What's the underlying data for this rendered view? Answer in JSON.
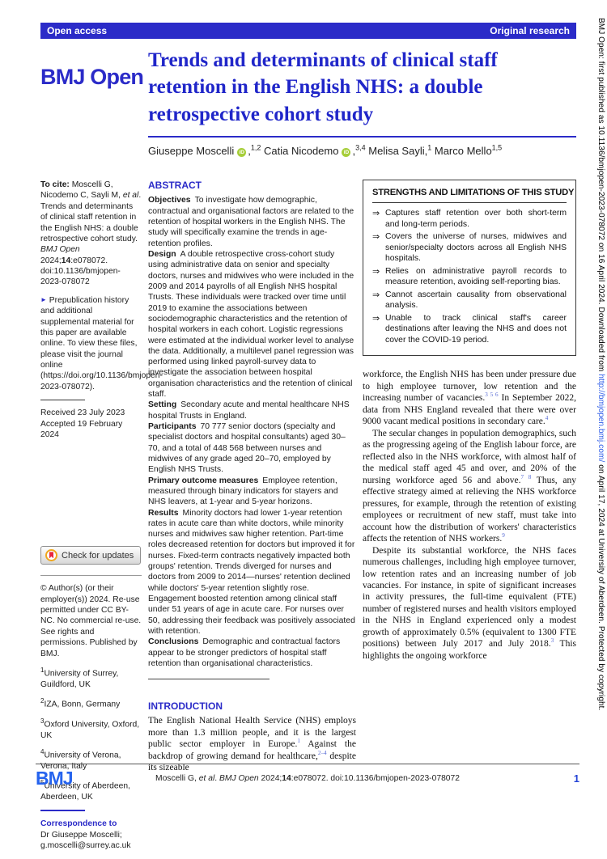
{
  "topbar": {
    "left": "Open access",
    "right": "Original research"
  },
  "masthead": {
    "logo": "BMJ Open",
    "title": "Trends and determinants of clinical staff retention in the English NHS: a double retrospective cohort study"
  },
  "authors": [
    {
      "name": "Giuseppe Moscelli",
      "orcid": true,
      "orcid_glyph": "iD",
      "comma": ",",
      "sup": "1,2",
      "sep": "  "
    },
    {
      "name": "Catia Nicodemo",
      "orcid": true,
      "orcid_glyph": "iD",
      "comma": ",",
      "sup": "3,4",
      "sep": "  "
    },
    {
      "name": "Melisa Sayli",
      "orcid": false,
      "orcid_glyph": "iD",
      "comma": ",",
      "sup": "1",
      "sep": "  "
    },
    {
      "name": "Marco Mello",
      "orcid": false,
      "orcid_glyph": "iD",
      "comma": "",
      "sup": "1,5",
      "sep": ""
    }
  ],
  "left_col": {
    "to_cite_segments": [
      {
        "t": "To cite: ",
        "b": true
      },
      {
        "t": "Moscelli G, Nicodemo C, Sayli M, "
      },
      {
        "t": "et al",
        "i": true
      },
      {
        "t": ". Trends and determinants of clinical staff retention in the English NHS: a double retrospective cohort study. "
      },
      {
        "t": "BMJ Open",
        "i": true
      },
      {
        "t": " 2024;"
      },
      {
        "t": "14",
        "b": true
      },
      {
        "t": ":e078072. doi:10.1136/bmjopen-2023-078072"
      }
    ],
    "prepub_marker": "►",
    "prepub_text": "Prepublication history and additional supplemental material for this paper are available online. To view these files, please visit the journal online (https://doi.org/10.1136/bmjopen-2023-078072).",
    "received": "Received 23 July 2023",
    "accepted": "Accepted 19 February 2024",
    "check_updates_label": "Check for updates",
    "copyright": "© Author(s) (or their employer(s)) 2024. Re-use permitted under CC BY-NC. No commercial re-use. See rights and permissions. Published by BMJ.",
    "affiliations": [
      {
        "sup": "1",
        "text": "University of Surrey, Guildford, UK"
      },
      {
        "sup": "2",
        "text": "IZA, Bonn, Germany"
      },
      {
        "sup": "3",
        "text": "Oxford University, Oxford, UK"
      },
      {
        "sup": "4",
        "text": "University of Verona, Verona, Italy"
      },
      {
        "sup": "5",
        "text": "University of Aberdeen, Aberdeen, UK"
      }
    ],
    "correspondence_label": "Correspondence to",
    "correspondence_name": "Dr Giuseppe Moscelli;",
    "correspondence_email": "g.moscelli@surrey.ac.uk"
  },
  "abstract": {
    "heading": "ABSTRACT",
    "sections": [
      {
        "label": "Objectives",
        "text": "To investigate how demographic, contractual and organisational factors are related to the retention of hospital workers in the English NHS. The study will specifically examine the trends in age-retention profiles."
      },
      {
        "label": "Design",
        "text": "A double retrospective cross-cohort study using administrative data on senior and specialty doctors, nurses and midwives who were included in the 2009 and 2014 payrolls of all English NHS hospital Trusts. These individuals were tracked over time until 2019 to examine the associations between sociodemographic characteristics and the retention of hospital workers in each cohort. Logistic regressions were estimated at the individual worker level to analyse the data. Additionally, a multilevel panel regression was performed using linked payroll-survey data to investigate the association between hospital organisation characteristics and the retention of clinical staff."
      },
      {
        "label": "Setting",
        "text": "Secondary acute and mental healthcare NHS hospital Trusts in England."
      },
      {
        "label": "Participants",
        "text": "70 777 senior doctors (specialty and specialist doctors and hospital consultants) aged 30–70, and a total of 448 568 between nurses and midwives of any grade aged 20–70, employed by English NHS Trusts."
      },
      {
        "label": "Primary outcome measures",
        "text": "Employee retention, measured through binary indicators for stayers and NHS leavers, at 1-year and 5-year horizons."
      },
      {
        "label": "Results",
        "text": "Minority doctors had lower 1-year retention rates in acute care than white doctors, while minority nurses and midwives saw higher retention. Part-time roles decreased retention for doctors but improved it for nurses. Fixed-term contracts negatively impacted both groups' retention. Trends diverged for nurses and doctors from 2009 to 2014—nurses' retention declined while doctors' 5-year retention slightly rose. Engagement boosted retention among clinical staff under 51 years of age in acute care. For nurses over 50, addressing their feedback was positively associated with retention."
      },
      {
        "label": "Conclusions",
        "text": "Demographic and contractual factors appear to be stronger predictors of hospital staff retention than organisational characteristics."
      }
    ]
  },
  "strengths": {
    "heading": "STRENGTHS AND LIMITATIONS OF THIS STUDY",
    "arrow": "⇒",
    "items": [
      {
        "text": "Captures staff retention over both short-term and long-term periods."
      },
      {
        "text": "Covers the universe of nurses, midwives and senior/specialty doctors across all English NHS hospitals."
      },
      {
        "text": "Relies on administrative payroll records to measure retention, avoiding self-reporting bias."
      },
      {
        "text": "Cannot ascertain causality from observational analysis."
      },
      {
        "text": "Unable to track clinical staff's career destinations after leaving the NHS and does not cover the COVID-19 period."
      }
    ]
  },
  "introduction": {
    "heading": "INTRODUCTION",
    "segments": [
      {
        "t": "The English National Health Service (NHS) employs more than 1.3 million people, and it is the largest public sector employer in Europe."
      },
      {
        "t": "1",
        "sup": true
      },
      {
        "t": " Against the backdrop of growing demand for healthcare,"
      },
      {
        "t": "2–4",
        "sup": true
      },
      {
        "t": " despite its sizeable"
      }
    ]
  },
  "body": {
    "paragraph1": [
      {
        "t": "workforce, the English NHS has been under pressure due to high employee turnover, low retention and the increasing number of vacancies."
      },
      {
        "t": "3 5 6",
        "sup": true
      },
      {
        "t": " In September 2022, data from NHS England revealed that there were over 9000 vacant medical positions in secondary care."
      },
      {
        "t": "4",
        "sup": true
      }
    ],
    "paragraph2": [
      {
        "t": "The secular changes in population demographics, such as the progressing ageing of the English labour force, are reflected also in the NHS workforce, with almost half of the medical staff aged 45 and over, and 20% of the nursing workforce aged 56 and above."
      },
      {
        "t": "7 8",
        "sup": true
      },
      {
        "t": " Thus, any effective strategy aimed at relieving the NHS workforce pressures, for example, through the retention of existing employees or recruitment of new staff, must take into account how the distribution of workers' characteristics affects the retention of NHS workers."
      },
      {
        "t": "9",
        "sup": true
      }
    ],
    "paragraph3": [
      {
        "t": "Despite its substantial workforce, the NHS faces numerous challenges, including high employee turnover, low retention rates and an increasing number of job vacancies. For instance, in spite of significant increases in activity pressures, the full-time equivalent (FTE) number of registered nurses and health visitors employed in the NHS in England experienced only a modest growth of approximately 0.5% (equivalent to 1300 FTE positions) between July 2017 and July 2018."
      },
      {
        "t": "3",
        "sup": true
      },
      {
        "t": " This highlights the ongoing workforce"
      }
    ]
  },
  "sidebar": {
    "segments": [
      {
        "t": "BMJ Open: first published as 10.1136/bmjopen-2023-078072 on 16 April 2024. Downloaded from "
      },
      {
        "t": "http://bmjopen.bmj.com/",
        "link": true
      },
      {
        "t": " on April 17, 2024 at University of Aberdeen. Protected by copyright."
      }
    ]
  },
  "footer": {
    "logo": "BMJ",
    "citation_segments": [
      {
        "t": "Moscelli G, "
      },
      {
        "t": "et al",
        "i": true
      },
      {
        "t": ". "
      },
      {
        "t": "BMJ Open",
        "i": true
      },
      {
        "t": " 2024;"
      },
      {
        "t": "14",
        "b": true
      },
      {
        "t": ":e078072. doi:10.1136/bmjopen-2023-078072"
      }
    ],
    "page": "1"
  }
}
